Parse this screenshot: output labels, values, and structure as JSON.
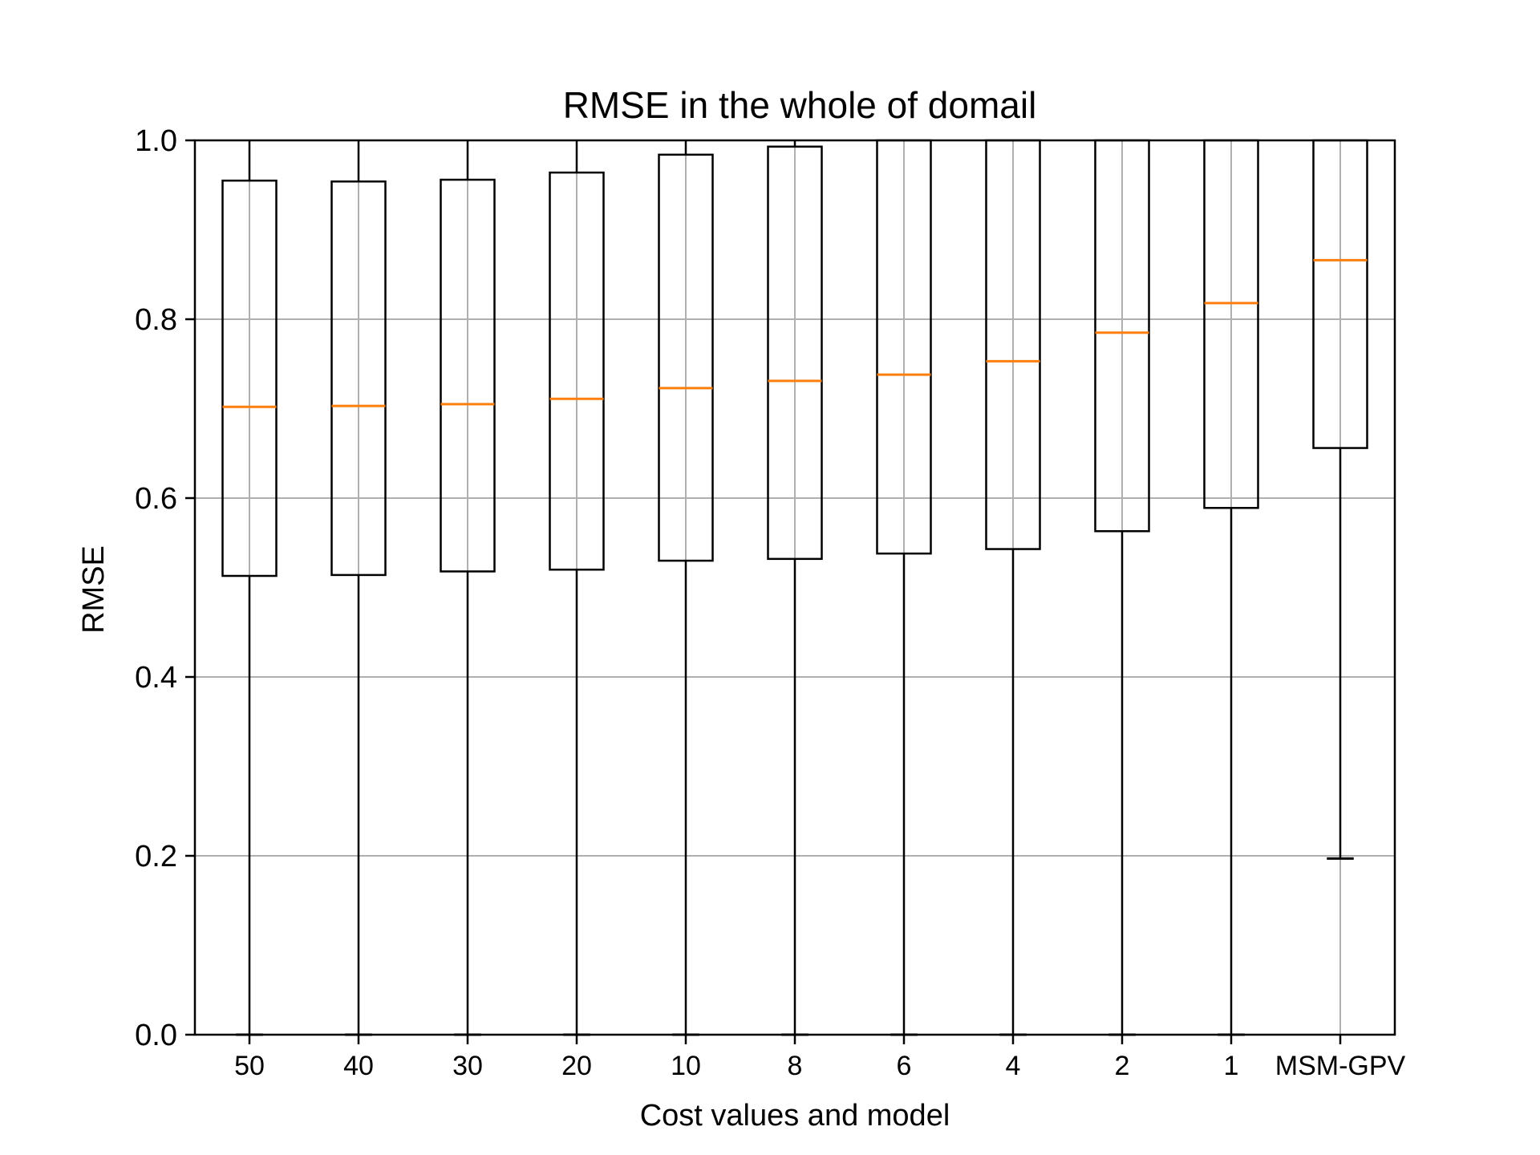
{
  "chart_data": {
    "type": "boxplot",
    "title": "RMSE in the whole of domail",
    "xlabel": "Cost values and model",
    "ylabel": "RMSE",
    "ylim": [
      0.0,
      1.0
    ],
    "yticks": [
      "0.0",
      "0.2",
      "0.4",
      "0.6",
      "0.8",
      "1.0"
    ],
    "grid": true,
    "categories": [
      "50",
      "40",
      "30",
      "20",
      "10",
      "8",
      "6",
      "4",
      "2",
      "1",
      "MSM-GPV"
    ],
    "boxes": [
      {
        "category": "50",
        "whisker_low": 0.0,
        "q1": 0.513,
        "median": 0.702,
        "q3": 0.955,
        "whisker_high": 1.0
      },
      {
        "category": "40",
        "whisker_low": 0.0,
        "q1": 0.514,
        "median": 0.703,
        "q3": 0.954,
        "whisker_high": 1.0
      },
      {
        "category": "30",
        "whisker_low": 0.0,
        "q1": 0.518,
        "median": 0.705,
        "q3": 0.956,
        "whisker_high": 1.0
      },
      {
        "category": "20",
        "whisker_low": 0.0,
        "q1": 0.52,
        "median": 0.711,
        "q3": 0.964,
        "whisker_high": 1.0
      },
      {
        "category": "10",
        "whisker_low": 0.0,
        "q1": 0.53,
        "median": 0.723,
        "q3": 0.984,
        "whisker_high": 1.0
      },
      {
        "category": "8",
        "whisker_low": 0.0,
        "q1": 0.532,
        "median": 0.731,
        "q3": 0.993,
        "whisker_high": 1.0
      },
      {
        "category": "6",
        "whisker_low": 0.0,
        "q1": 0.538,
        "median": 0.738,
        "q3": 1.0,
        "whisker_high": 1.0
      },
      {
        "category": "4",
        "whisker_low": 0.0,
        "q1": 0.543,
        "median": 0.753,
        "q3": 1.0,
        "whisker_high": 1.0
      },
      {
        "category": "2",
        "whisker_low": 0.0,
        "q1": 0.563,
        "median": 0.785,
        "q3": 1.0,
        "whisker_high": 1.0
      },
      {
        "category": "1",
        "whisker_low": 0.0,
        "q1": 0.589,
        "median": 0.818,
        "q3": 1.0,
        "whisker_high": 1.0
      },
      {
        "category": "MSM-GPV",
        "whisker_low": 0.197,
        "q1": 0.656,
        "median": 0.866,
        "q3": 1.0,
        "whisker_high": 1.0
      }
    ],
    "colors": {
      "box": "#000000",
      "median": "#ff7f0e",
      "grid": "#b0b0b0"
    }
  }
}
